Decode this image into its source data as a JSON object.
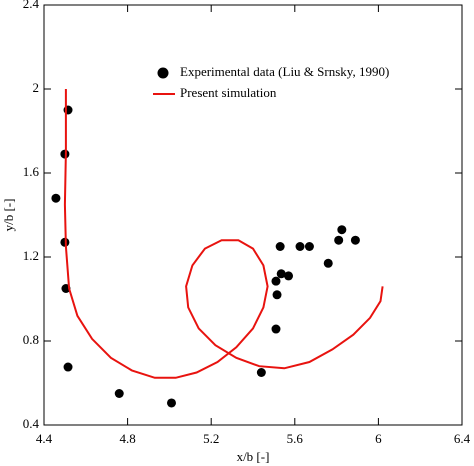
{
  "chart_data": {
    "type": "scatter",
    "x_label": "x/b [-]",
    "y_label": "y/b [-]",
    "xlim": [
      4.4,
      6.4
    ],
    "xticks": [
      4.4,
      4.8,
      5.2,
      5.6,
      6,
      6.4
    ],
    "ylim": [
      0.4,
      2.4
    ],
    "yticks": [
      0.4,
      0.8,
      1.2,
      1.6,
      2,
      2.4
    ],
    "legend": "upper right",
    "series": [
      {
        "name": "Experimental data (Liu & Srnsky, 1990)",
        "color": "#000000",
        "mode": "markers",
        "x": [
          4.515,
          4.5,
          4.457,
          4.5,
          4.505,
          4.515,
          4.76,
          5.01,
          5.44,
          5.51,
          5.515,
          5.51,
          5.53,
          5.535,
          5.57,
          5.625,
          5.67,
          5.76,
          5.81,
          5.825,
          5.89
        ],
        "values": [
          1.9,
          1.69,
          1.48,
          1.27,
          1.05,
          0.676,
          0.55,
          0.505,
          0.65,
          0.857,
          1.02,
          1.085,
          1.25,
          1.12,
          1.11,
          1.25,
          1.25,
          1.17,
          1.28,
          1.33,
          1.28
        ]
      },
      {
        "name": "Present simulation",
        "color": "#e8130f",
        "mode": "line",
        "x": [
          4.505,
          4.505,
          4.5,
          4.505,
          4.52,
          4.56,
          4.63,
          4.72,
          4.82,
          4.93,
          5.03,
          5.13,
          5.23,
          5.32,
          5.4,
          5.45,
          5.47,
          5.45,
          5.4,
          5.33,
          5.25,
          5.17,
          5.11,
          5.08,
          5.09,
          5.14,
          5.22,
          5.32,
          5.43,
          5.55,
          5.67,
          5.78,
          5.88,
          5.96,
          6.01,
          6.02
        ],
        "values": [
          2.0,
          1.7,
          1.45,
          1.25,
          1.05,
          0.92,
          0.81,
          0.72,
          0.66,
          0.625,
          0.625,
          0.65,
          0.7,
          0.77,
          0.86,
          0.96,
          1.06,
          1.16,
          1.24,
          1.28,
          1.28,
          1.24,
          1.16,
          1.06,
          0.96,
          0.86,
          0.78,
          0.72,
          0.68,
          0.67,
          0.7,
          0.76,
          0.83,
          0.91,
          0.99,
          1.06
        ]
      }
    ]
  }
}
